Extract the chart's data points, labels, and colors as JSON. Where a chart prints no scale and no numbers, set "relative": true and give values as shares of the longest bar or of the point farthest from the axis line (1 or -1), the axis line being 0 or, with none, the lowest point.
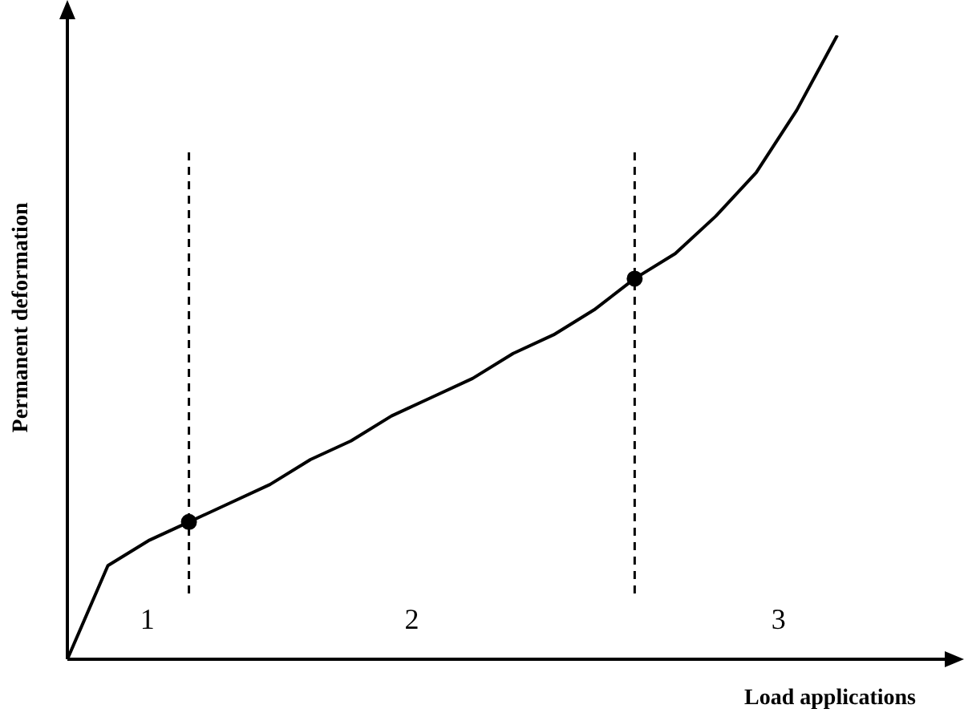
{
  "chart_data": {
    "type": "line",
    "relative": true,
    "xlabel": "Load applications",
    "ylabel": "Permanent deformation",
    "categories": [
      null,
      null,
      null,
      null,
      null,
      null,
      null,
      null,
      null,
      null,
      null,
      null,
      null,
      null,
      null,
      null,
      null,
      null,
      null,
      null
    ],
    "series": [
      {
        "color": "#000000",
        "values": [
          0,
          0.15,
          0.19,
          0.22,
          0.25,
          0.28,
          0.32,
          0.35,
          0.39,
          0.42,
          0.45,
          0.49,
          0.52,
          0.56,
          0.61,
          0.65,
          0.71,
          0.78,
          0.88,
          1
        ]
      }
    ],
    "annotations": [
      "1",
      "2",
      "3"
    ],
    "legend": false
  }
}
